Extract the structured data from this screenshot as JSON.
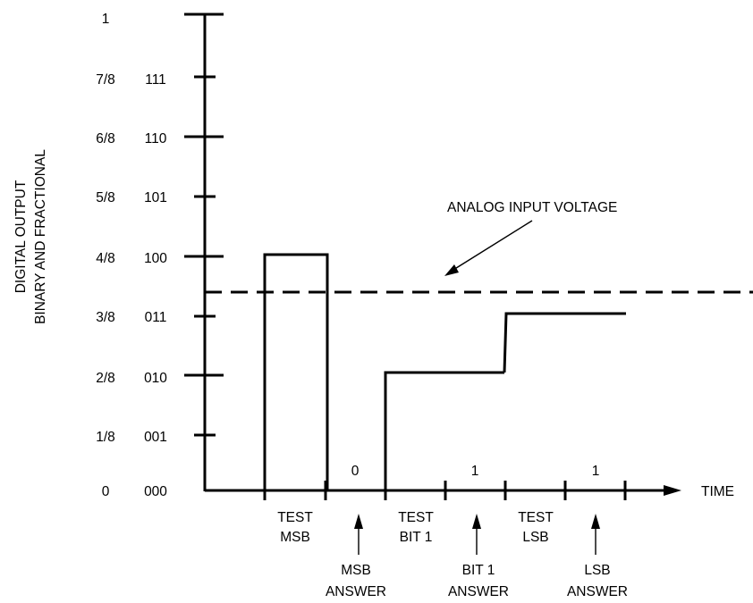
{
  "y_axis_title": {
    "line1": "DIGITAL OUTPUT",
    "line2": "BINARY AND FRACTIONAL"
  },
  "y_fraction_labels": [
    "0",
    "1/8",
    "2/8",
    "3/8",
    "4/8",
    "5/8",
    "6/8",
    "7/8",
    "1"
  ],
  "y_binary_labels": [
    "000",
    "001",
    "010",
    "011",
    "100",
    "101",
    "110",
    "111"
  ],
  "x_axis_label": "TIME",
  "threshold_label": "ANALOG INPUT VOLTAGE",
  "bit_results": [
    "0",
    "1",
    "1"
  ],
  "test_labels": [
    {
      "line1": "TEST",
      "line2": "MSB"
    },
    {
      "line1": "TEST",
      "line2": "BIT 1"
    },
    {
      "line1": "TEST",
      "line2": "LSB"
    }
  ],
  "answer_labels": [
    {
      "line1": "MSB",
      "line2": "ANSWER"
    },
    {
      "line1": "BIT 1",
      "line2": "ANSWER"
    },
    {
      "line1": "LSB",
      "line2": "ANSWER"
    }
  ],
  "sequence": {
    "analog_input_fraction": 0.41,
    "steps": [
      {
        "phase": "test-msb",
        "code": "100"
      },
      {
        "phase": "test-bit-1",
        "code": "010"
      },
      {
        "phase": "test-lsb",
        "code": "011"
      }
    ]
  }
}
